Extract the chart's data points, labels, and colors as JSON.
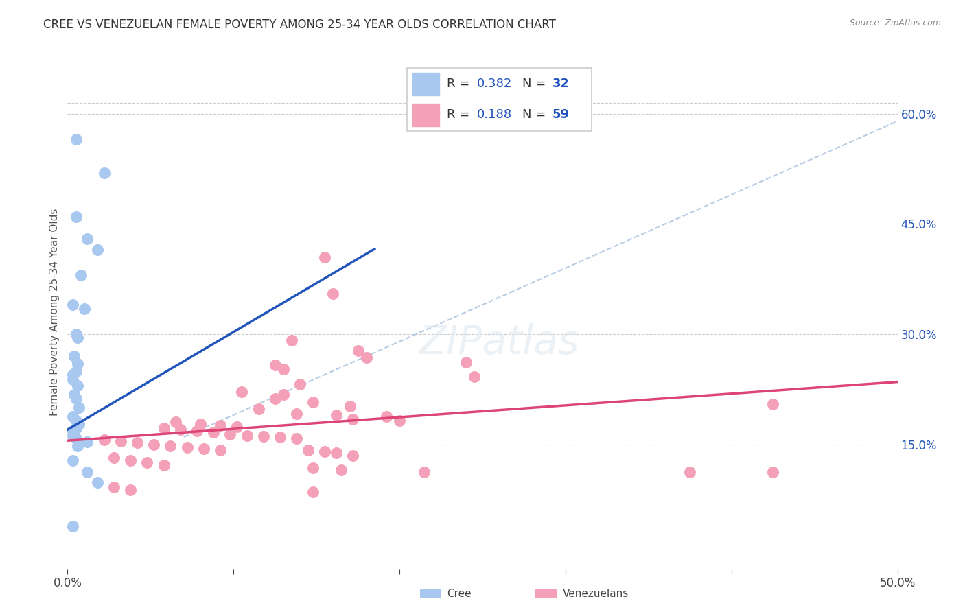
{
  "title": "CREE VS VENEZUELAN FEMALE POVERTY AMONG 25-34 YEAR OLDS CORRELATION CHART",
  "source": "Source: ZipAtlas.com",
  "ylabel": "Female Poverty Among 25-34 Year Olds",
  "xlim": [
    0,
    0.5
  ],
  "ylim": [
    -0.02,
    0.68
  ],
  "yticks_right": [
    0.15,
    0.3,
    0.45,
    0.6
  ],
  "yticklabels_right": [
    "15.0%",
    "30.0%",
    "45.0%",
    "60.0%"
  ],
  "cree_color": "#a8c8f0",
  "venezuelan_color": "#f4a0b8",
  "cree_line_color": "#2255bb",
  "venezuelan_line_color": "#dd4477",
  "diagonal_color": "#b8cce4",
  "legend_r_cree": "0.382",
  "legend_n_cree": "32",
  "legend_r_ven": "0.188",
  "legend_n_ven": "59",
  "legend_text_color": "#2255bb",
  "cree_data": [
    [
      0.005,
      0.565
    ],
    [
      0.022,
      0.52
    ],
    [
      0.005,
      0.46
    ],
    [
      0.012,
      0.43
    ],
    [
      0.018,
      0.415
    ],
    [
      0.008,
      0.38
    ],
    [
      0.003,
      0.34
    ],
    [
      0.01,
      0.335
    ],
    [
      0.005,
      0.3
    ],
    [
      0.006,
      0.295
    ],
    [
      0.004,
      0.27
    ],
    [
      0.006,
      0.26
    ],
    [
      0.005,
      0.25
    ],
    [
      0.003,
      0.245
    ],
    [
      0.003,
      0.238
    ],
    [
      0.006,
      0.23
    ],
    [
      0.004,
      0.218
    ],
    [
      0.005,
      0.212
    ],
    [
      0.007,
      0.2
    ],
    [
      0.003,
      0.188
    ],
    [
      0.005,
      0.182
    ],
    [
      0.007,
      0.178
    ],
    [
      0.005,
      0.172
    ],
    [
      0.003,
      0.168
    ],
    [
      0.003,
      0.162
    ],
    [
      0.005,
      0.158
    ],
    [
      0.012,
      0.153
    ],
    [
      0.006,
      0.148
    ],
    [
      0.003,
      0.128
    ],
    [
      0.012,
      0.112
    ],
    [
      0.018,
      0.098
    ],
    [
      0.003,
      0.038
    ]
  ],
  "venezuelan_data": [
    [
      0.155,
      0.405
    ],
    [
      0.16,
      0.355
    ],
    [
      0.135,
      0.292
    ],
    [
      0.175,
      0.278
    ],
    [
      0.18,
      0.268
    ],
    [
      0.24,
      0.262
    ],
    [
      0.125,
      0.258
    ],
    [
      0.13,
      0.252
    ],
    [
      0.245,
      0.242
    ],
    [
      0.14,
      0.232
    ],
    [
      0.105,
      0.222
    ],
    [
      0.13,
      0.218
    ],
    [
      0.125,
      0.212
    ],
    [
      0.148,
      0.208
    ],
    [
      0.17,
      0.202
    ],
    [
      0.115,
      0.198
    ],
    [
      0.138,
      0.192
    ],
    [
      0.162,
      0.19
    ],
    [
      0.192,
      0.188
    ],
    [
      0.172,
      0.184
    ],
    [
      0.2,
      0.182
    ],
    [
      0.065,
      0.18
    ],
    [
      0.08,
      0.178
    ],
    [
      0.092,
      0.176
    ],
    [
      0.102,
      0.174
    ],
    [
      0.058,
      0.172
    ],
    [
      0.068,
      0.17
    ],
    [
      0.078,
      0.168
    ],
    [
      0.088,
      0.166
    ],
    [
      0.098,
      0.164
    ],
    [
      0.108,
      0.162
    ],
    [
      0.118,
      0.161
    ],
    [
      0.128,
      0.16
    ],
    [
      0.138,
      0.158
    ],
    [
      0.022,
      0.156
    ],
    [
      0.032,
      0.154
    ],
    [
      0.042,
      0.152
    ],
    [
      0.052,
      0.15
    ],
    [
      0.062,
      0.148
    ],
    [
      0.072,
      0.146
    ],
    [
      0.082,
      0.144
    ],
    [
      0.092,
      0.142
    ],
    [
      0.145,
      0.142
    ],
    [
      0.155,
      0.14
    ],
    [
      0.162,
      0.138
    ],
    [
      0.172,
      0.135
    ],
    [
      0.028,
      0.132
    ],
    [
      0.038,
      0.128
    ],
    [
      0.048,
      0.125
    ],
    [
      0.058,
      0.122
    ],
    [
      0.148,
      0.118
    ],
    [
      0.165,
      0.115
    ],
    [
      0.215,
      0.112
    ],
    [
      0.375,
      0.112
    ],
    [
      0.425,
      0.112
    ],
    [
      0.028,
      0.092
    ],
    [
      0.038,
      0.088
    ],
    [
      0.148,
      0.085
    ],
    [
      0.425,
      0.205
    ]
  ]
}
